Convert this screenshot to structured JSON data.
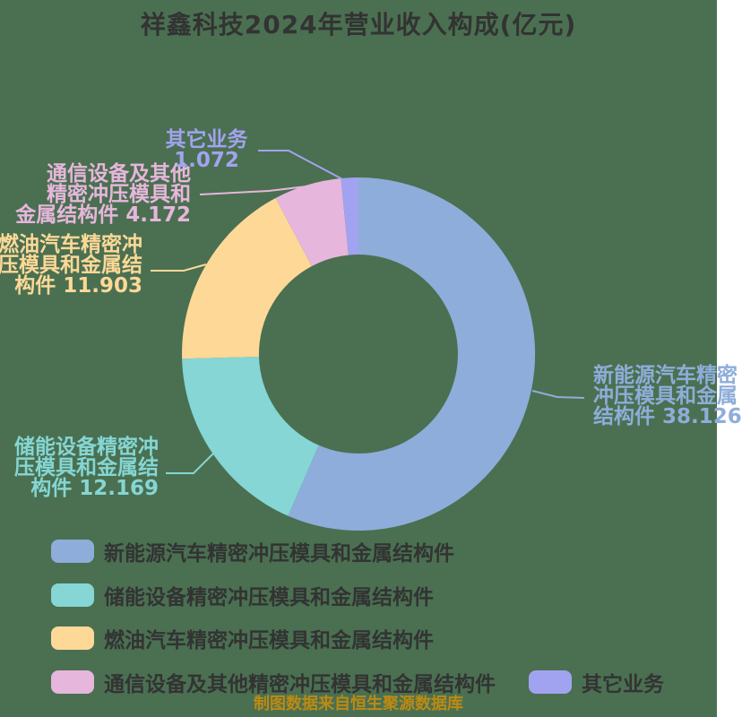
{
  "title": "祥鑫科技2024年营业收入构成(亿元)",
  "caption": "制图数据来自恒生聚源数据库",
  "background_color": "#4a7051",
  "title_color": "#333333",
  "caption_color": "#bd8a12",
  "chart_data": {
    "type": "pie",
    "donut": true,
    "title": "祥鑫科技2024年营业收入构成(亿元)",
    "unit": "亿元",
    "start_angle": "top",
    "direction": "clockwise",
    "series": [
      {
        "name": "新能源汽车精密冲压模具和金属结构件",
        "value": 38.126,
        "color": "#8eadda"
      },
      {
        "name": "储能设备精密冲压模具和金属结构件",
        "value": 12.169,
        "color": "#85d6d4"
      },
      {
        "name": "燃油汽车精密冲压模具和金属结构件",
        "value": 11.903,
        "color": "#fdd897"
      },
      {
        "name": "通信设备及其他精密冲压模具和金属结构件",
        "value": 4.172,
        "color": "#e7b6dc"
      },
      {
        "name": "其它业务",
        "value": 1.072,
        "color": "#a2a3f0"
      }
    ],
    "legend_position": "bottom"
  },
  "callouts": {
    "nev": {
      "line1": "新能源汽车精密",
      "line2": "冲压模具和金属",
      "line3": "结构件 38.126"
    },
    "storage": {
      "line1": "储能设备精密冲",
      "line2": "压模具和金属结",
      "line3": "构件 12.169"
    },
    "fuel": {
      "line1": "燃油汽车精密冲",
      "line2": "压模具和金属结",
      "line3": "构件 11.903"
    },
    "comm": {
      "line1": "通信设备及其他",
      "line2": "精密冲压模具和",
      "line3": "金属结构件 4.172"
    },
    "other": {
      "line1": "其它业务",
      "line2": "1.072"
    }
  },
  "legend": [
    {
      "label": "新能源汽车精密冲压模具和金属结构件",
      "color": "#8eadda"
    },
    {
      "label": "储能设备精密冲压模具和金属结构件",
      "color": "#85d6d4"
    },
    {
      "label": "燃油汽车精密冲压模具和金属结构件",
      "color": "#fdd897"
    },
    {
      "label": "通信设备及其他精密冲压模具和金属结构件",
      "color": "#e7b6dc"
    },
    {
      "label": "其它业务",
      "color": "#a2a3f0"
    }
  ]
}
